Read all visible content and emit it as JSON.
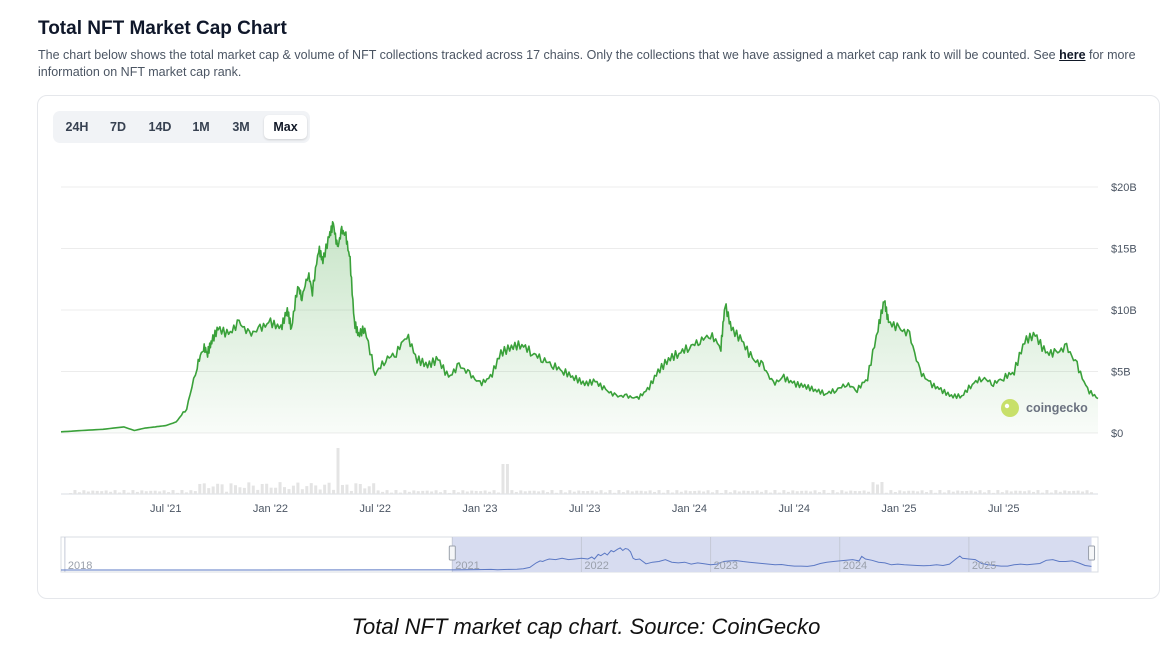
{
  "header": {
    "title": "Total NFT Market Cap Chart",
    "description": "The chart below shows the total market cap & volume of NFT collections tracked across 17 chains. Only the collections that we have assigned a market cap rank to will be counted. See ",
    "link_text": "here",
    "description_end": " for more information on NFT market cap rank."
  },
  "range_tabs": [
    {
      "label": "24H",
      "active": false
    },
    {
      "label": "7D",
      "active": false
    },
    {
      "label": "14D",
      "active": false
    },
    {
      "label": "1M",
      "active": false
    },
    {
      "label": "3M",
      "active": false
    },
    {
      "label": "Max",
      "active": true
    }
  ],
  "watermark": {
    "text": "coingecko"
  },
  "caption": "Total NFT market cap chart. Source: CoinGecko",
  "colors": {
    "line": "#3aa13a",
    "navigator_fill": "#d7dcf0",
    "navigator_line": "#5b78c4",
    "grid": "#ececec",
    "volume": "#e4e4e4"
  },
  "chart_data": {
    "type": "area",
    "title": "Total NFT Market Cap Chart",
    "y_unit": "USD billions",
    "ylim": [
      0,
      20
    ],
    "y_ticks": [
      {
        "value": 0,
        "label": "$0"
      },
      {
        "value": 5,
        "label": "$5B"
      },
      {
        "value": 10,
        "label": "$10B"
      },
      {
        "value": 15,
        "label": "$15B"
      },
      {
        "value": 20,
        "label": "$20B"
      }
    ],
    "x_range": [
      2021.0,
      2025.95
    ],
    "x_ticks": [
      {
        "value": 2021.5,
        "label": "Jul '21"
      },
      {
        "value": 2022.0,
        "label": "Jan '22"
      },
      {
        "value": 2022.5,
        "label": "Jul '22"
      },
      {
        "value": 2023.0,
        "label": "Jan '23"
      },
      {
        "value": 2023.5,
        "label": "Jul '23"
      },
      {
        "value": 2024.0,
        "label": "Jan '24"
      },
      {
        "value": 2024.5,
        "label": "Jul '24"
      },
      {
        "value": 2025.0,
        "label": "Jan '25"
      },
      {
        "value": 2025.5,
        "label": "Jul '25"
      }
    ],
    "series": [
      {
        "name": "Market Cap",
        "x": [
          2021.0,
          2021.1,
          2021.2,
          2021.3,
          2021.35,
          2021.4,
          2021.45,
          2021.5,
          2021.55,
          2021.6,
          2021.65,
          2021.68,
          2021.7,
          2021.72,
          2021.75,
          2021.8,
          2021.85,
          2021.9,
          2021.95,
          2022.0,
          2022.05,
          2022.08,
          2022.1,
          2022.13,
          2022.15,
          2022.18,
          2022.2,
          2022.23,
          2022.25,
          2022.28,
          2022.3,
          2022.32,
          2022.34,
          2022.36,
          2022.38,
          2022.4,
          2022.42,
          2022.45,
          2022.5,
          2022.55,
          2022.6,
          2022.65,
          2022.7,
          2022.75,
          2022.8,
          2022.85,
          2022.9,
          2022.95,
          2023.0,
          2023.05,
          2023.1,
          2023.15,
          2023.2,
          2023.25,
          2023.3,
          2023.35,
          2023.4,
          2023.45,
          2023.5,
          2023.55,
          2023.6,
          2023.65,
          2023.7,
          2023.75,
          2023.8,
          2023.85,
          2023.9,
          2023.95,
          2024.0,
          2024.05,
          2024.1,
          2024.15,
          2024.17,
          2024.2,
          2024.25,
          2024.3,
          2024.35,
          2024.4,
          2024.45,
          2024.5,
          2024.55,
          2024.6,
          2024.65,
          2024.7,
          2024.75,
          2024.8,
          2024.85,
          2024.9,
          2024.93,
          2024.95,
          2025.0,
          2025.05,
          2025.1,
          2025.15,
          2025.2,
          2025.25,
          2025.3,
          2025.35,
          2025.4,
          2025.45,
          2025.5,
          2025.55,
          2025.6,
          2025.65,
          2025.7,
          2025.75,
          2025.8,
          2025.85,
          2025.9,
          2025.95
        ],
        "values": [
          0.1,
          0.2,
          0.3,
          0.5,
          0.2,
          0.4,
          0.5,
          0.6,
          0.9,
          2.0,
          5.5,
          7.0,
          6.5,
          7.5,
          8.5,
          8.0,
          9.0,
          8.0,
          8.5,
          9.0,
          8.5,
          10.0,
          8.5,
          12.0,
          11.0,
          13.0,
          11.5,
          15.0,
          14.0,
          16.0,
          17.0,
          15.0,
          16.5,
          16.0,
          14.0,
          9.0,
          8.0,
          8.5,
          4.8,
          6.0,
          6.5,
          8.0,
          6.0,
          5.5,
          6.0,
          4.5,
          5.5,
          4.8,
          4.0,
          4.5,
          6.5,
          7.0,
          7.2,
          6.5,
          6.0,
          5.5,
          5.0,
          4.5,
          4.0,
          4.2,
          3.5,
          3.0,
          3.0,
          2.8,
          3.5,
          5.0,
          6.0,
          6.5,
          7.0,
          7.5,
          8.0,
          7.0,
          10.5,
          8.5,
          7.5,
          6.0,
          5.5,
          4.0,
          4.5,
          4.0,
          3.8,
          3.5,
          3.2,
          3.5,
          4.0,
          3.5,
          4.5,
          8.5,
          10.8,
          9.0,
          8.5,
          8.0,
          5.0,
          4.0,
          3.5,
          3.0,
          3.0,
          4.0,
          4.5,
          4.0,
          4.5,
          5.0,
          7.5,
          8.0,
          6.5,
          6.5,
          7.0,
          5.5,
          3.5,
          2.8
        ]
      }
    ],
    "volume_note": "faint daily volume bars under the market cap line",
    "navigator": {
      "x_range": [
        2017.97,
        2026.0
      ],
      "x_labels": [
        {
          "value": 2018.0,
          "label": "2018"
        },
        {
          "value": 2021.0,
          "label": "2021"
        },
        {
          "value": 2022.0,
          "label": "2022"
        },
        {
          "value": 2023.0,
          "label": "2023"
        },
        {
          "value": 2024.0,
          "label": "2024"
        },
        {
          "value": 2025.0,
          "label": "2025"
        }
      ],
      "selected_range": [
        2021.0,
        2025.95
      ]
    }
  }
}
